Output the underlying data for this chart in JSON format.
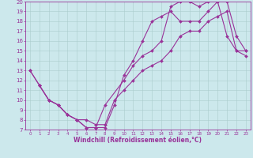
{
  "xlabel": "Windchill (Refroidissement éolien,°C)",
  "bg_color": "#cce8ec",
  "line_color": "#993399",
  "grid_color": "#aacccc",
  "xlim": [
    -0.5,
    23.5
  ],
  "ylim": [
    7,
    20
  ],
  "xticks": [
    0,
    1,
    2,
    3,
    4,
    5,
    6,
    7,
    8,
    9,
    10,
    11,
    12,
    13,
    14,
    15,
    16,
    17,
    18,
    19,
    20,
    21,
    22,
    23
  ],
  "yticks": [
    7,
    8,
    9,
    10,
    11,
    12,
    13,
    14,
    15,
    16,
    17,
    18,
    19,
    20
  ],
  "line1_x": [
    0,
    1,
    2,
    3,
    4,
    5,
    6,
    7,
    8,
    10,
    11,
    12,
    13,
    14,
    15,
    16,
    17,
    18,
    19,
    20,
    21,
    22,
    23
  ],
  "line1_y": [
    13,
    11.5,
    10,
    9.5,
    8.5,
    8,
    7.2,
    7.2,
    9.5,
    12,
    13.5,
    14.5,
    15,
    16,
    19.5,
    20,
    20,
    19.5,
    20,
    20,
    16.5,
    15,
    14.5
  ],
  "line2_x": [
    0,
    1,
    2,
    3,
    4,
    5,
    6,
    7,
    8,
    9,
    10,
    11,
    12,
    13,
    14,
    15,
    16,
    17,
    18,
    19,
    20,
    21,
    22,
    23
  ],
  "line2_y": [
    13,
    11.5,
    10,
    9.5,
    8.5,
    8,
    7.2,
    7.2,
    7.2,
    9.5,
    12.5,
    14,
    16,
    18,
    18.5,
    19,
    18,
    18,
    18,
    19,
    20,
    20,
    16.5,
    15
  ],
  "line3_x": [
    1,
    2,
    3,
    4,
    5,
    6,
    7,
    8,
    9,
    10,
    11,
    12,
    13,
    14,
    15,
    16,
    17,
    18,
    19,
    20,
    21,
    22,
    23
  ],
  "line3_y": [
    11.5,
    10,
    9.5,
    8.5,
    8.0,
    8,
    7.5,
    7.5,
    10,
    11,
    12,
    13,
    13.5,
    14,
    15,
    16.5,
    17,
    17,
    18,
    18.5,
    19,
    15,
    15
  ],
  "marker": "D",
  "markersize": 2.0,
  "linewidth": 0.8,
  "tick_fontsize": 5.0,
  "xlabel_fontsize": 5.5
}
